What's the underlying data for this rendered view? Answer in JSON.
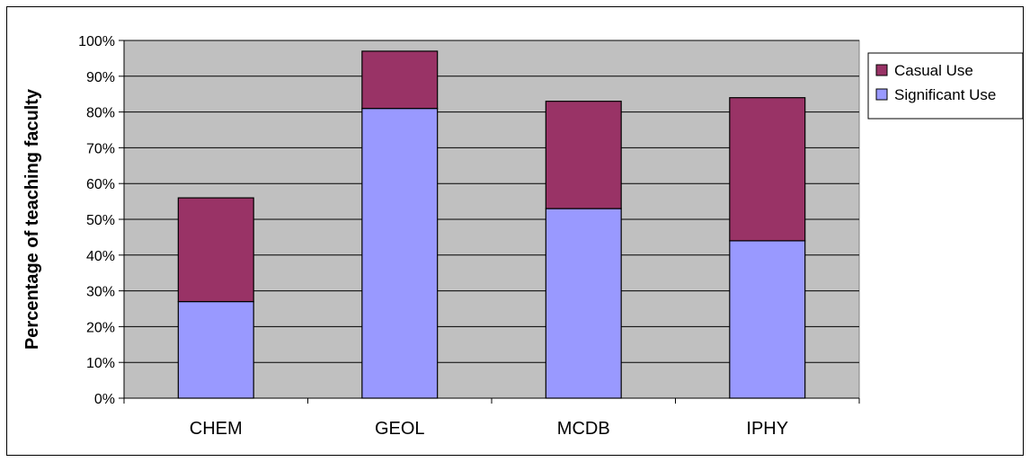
{
  "chart_data": {
    "type": "bar",
    "stacked": true,
    "title": "",
    "xlabel": "",
    "ylabel": "Percentage of teaching faculty",
    "ylim": [
      0,
      100
    ],
    "y_ticks": [
      "0%",
      "10%",
      "20%",
      "30%",
      "40%",
      "50%",
      "60%",
      "70%",
      "80%",
      "90%",
      "100%"
    ],
    "categories": [
      "CHEM",
      "GEOL",
      "MCDB",
      "IPHY"
    ],
    "series": [
      {
        "name": "Significant Use",
        "color": "#9999ff",
        "values": [
          27,
          81,
          53,
          44
        ]
      },
      {
        "name": "Casual Use",
        "color": "#993366",
        "values": [
          29,
          16,
          30,
          40
        ]
      }
    ],
    "legend_order": [
      "Casual Use",
      "Significant Use"
    ],
    "legend_position": "right",
    "plot_background": "#c0c0c0",
    "grid": true
  }
}
